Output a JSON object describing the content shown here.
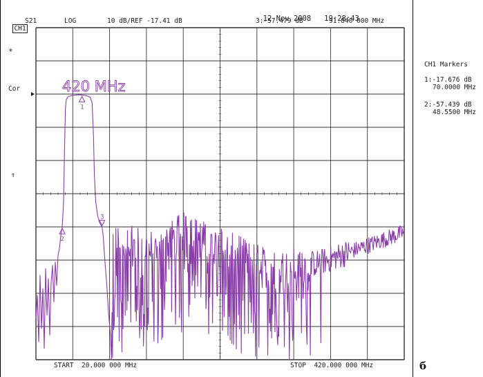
{
  "header": {
    "channel": "CH1",
    "param": "S21",
    "format": "LOG",
    "scale_ref": "10 dB/REF -17.41 dB",
    "date": "12 Nov 2008",
    "time": "19:28:43",
    "active_marker": "3:-57.479 dB",
    "active_marker_freq": "91.840 000 MHz"
  },
  "left_labels": {
    "star": "*",
    "cor": "Cor",
    "arrow": "↑"
  },
  "markers_panel": {
    "title": "CH1 Markers",
    "m1_value": "1:-17.676 dB",
    "m1_freq": "70.0000 MHz",
    "m2_value": "2:-57.439 dB",
    "m2_freq": "48.5500 MHz"
  },
  "footer": {
    "start": "START  20.000 000 MHz",
    "stop": "STOP  420.000 000 MHz"
  },
  "figure_letter": "б",
  "chart_data": {
    "type": "line",
    "title": "420 MHz",
    "xlabel": "",
    "ylabel": "",
    "x_unit": "MHz",
    "y_unit": "dB",
    "xlim": [
      20,
      420
    ],
    "ylim": [
      -97.41,
      2.59
    ],
    "reference_level_db": -17.41,
    "scale_db_per_div": 10,
    "grid": true,
    "trace_color": "#8a3ca8",
    "series": [
      {
        "points": [
          [
            20,
            -85
          ],
          [
            21.5,
            -78
          ],
          [
            23,
            -92
          ],
          [
            24.5,
            -72
          ],
          [
            26,
            -88
          ],
          [
            27.5,
            -76
          ],
          [
            29,
            -94
          ],
          [
            30.5,
            -70
          ],
          [
            32,
            -84
          ],
          [
            33.5,
            -73
          ],
          [
            35,
            -90
          ],
          [
            36.5,
            -74
          ],
          [
            38,
            -69
          ],
          [
            39.5,
            -80
          ],
          [
            41,
            -68
          ],
          [
            42.5,
            -75
          ],
          [
            44,
            -66
          ],
          [
            45.5,
            -64
          ],
          [
            47,
            -60
          ],
          [
            48.55,
            -57.44
          ],
          [
            50,
            -50
          ],
          [
            51,
            -35
          ],
          [
            52,
            -22
          ],
          [
            53,
            -19
          ],
          [
            55,
            -18.2
          ],
          [
            58,
            -17.9
          ],
          [
            61,
            -17.8
          ],
          [
            64,
            -17.7
          ],
          [
            67,
            -17.6
          ],
          [
            70,
            -17.68
          ],
          [
            73,
            -17.8
          ],
          [
            76,
            -18
          ],
          [
            79,
            -18.4
          ],
          [
            81,
            -20
          ],
          [
            82.5,
            -30
          ],
          [
            83.5,
            -42
          ],
          [
            85,
            -50
          ],
          [
            87,
            -54
          ],
          [
            89,
            -56
          ],
          [
            91.84,
            -57.48
          ],
          [
            93,
            -60
          ],
          [
            95,
            -68
          ],
          [
            97,
            -75
          ],
          [
            99,
            -84
          ],
          [
            101,
            -90
          ],
          [
            102,
            -97.41
          ]
        ]
      }
    ],
    "markers": [
      {
        "id": "1",
        "x": 70,
        "y": -17.676
      },
      {
        "id": "2",
        "x": 48.55,
        "y": -57.439
      },
      {
        "id": "3",
        "x": 91.84,
        "y": -57.479
      }
    ]
  }
}
